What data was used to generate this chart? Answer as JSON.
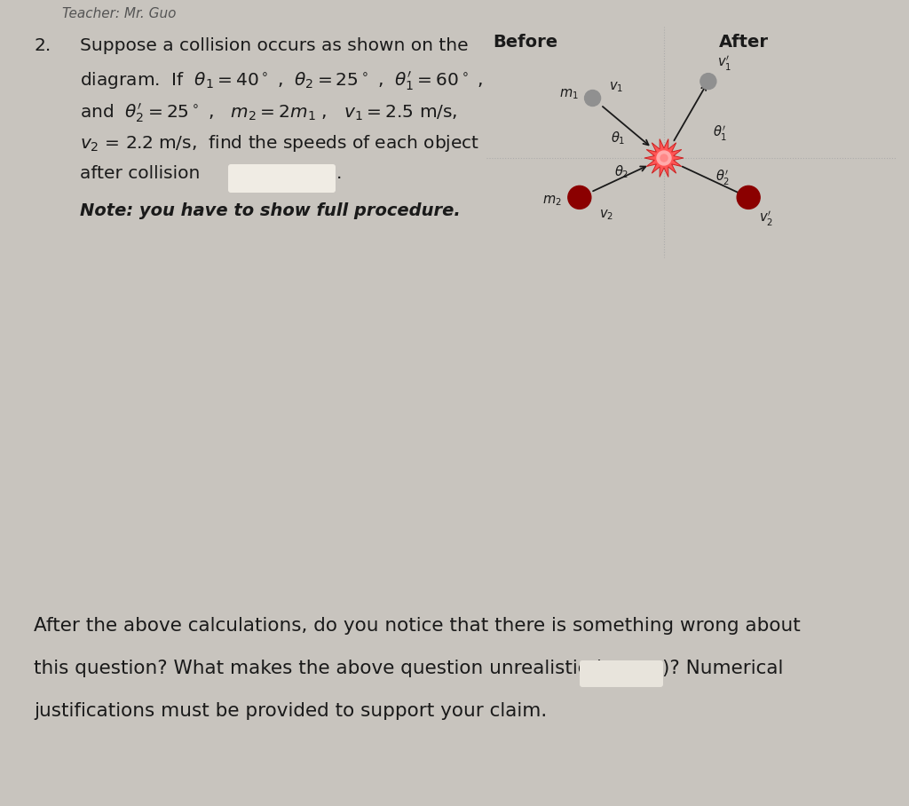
{
  "bg_color": "#c8c4be",
  "text_color": "#1a1a1a",
  "m1_color": "#909090",
  "m2_color": "#8b0000",
  "blank_color": "#f0ece4",
  "blank2_color": "#e8e4dc",
  "font_size_main": 14.5,
  "font_size_note": 14.0,
  "font_size_diag": 10.5,
  "font_size_bottom": 15.5,
  "header_text": "Teacher: Mr. Guo",
  "num": "2.",
  "line1": "Suppose a collision occurs as shown on the",
  "line2a": "diagram.  If  ",
  "line2_theta1": "$\\theta_1 = 40^\\circ$",
  "line2b": " ,  ",
  "line2_theta2": "$\\theta_2 = 25^\\circ$",
  "line2c": " ,  ",
  "line2_theta1p": "$\\theta_1' = 60^\\circ$",
  "line2d": " ,",
  "line3a": "and  ",
  "line3_theta2p": "$\\theta_2' = 25^\\circ$",
  "line3b": " ,   ",
  "line3_m2": "$m_2 = 2m_1$",
  "line3c": " ,   ",
  "line3_v1": "$v_1 = 2.5$",
  "line3d": " m/s,",
  "line4_v2": "$v_2$",
  "line4b": " = 2.2 m/s,  find the speeds of each object",
  "line5": "after collision",
  "note": "Note: you have to show full procedure.",
  "before_label": "Before",
  "after_label": "After",
  "bottom1": "After the above calculations, do you notice that there is something wrong about",
  "bottom2a": "this question? What makes the above question unrealistic (",
  "bottom2b": ")? Numerical",
  "bottom3": "justifications must be provided to support your claim.",
  "divider_color": "#aaaaaa",
  "dot_color": "#888888"
}
